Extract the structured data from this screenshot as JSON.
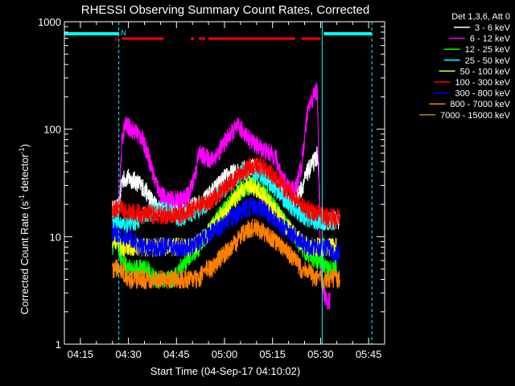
{
  "colors": {
    "background": "#000000",
    "axes": "#ffffff",
    "attenuator_bar": "#00ffff",
    "flare_flag": "#ff0000",
    "state_lines": "#00ffff"
  },
  "chart_data": {
    "type": "line",
    "title": "RHESSI Observing Summary Count Rates, Corrected",
    "xlabel": "Start Time (04-Sep-17 04:10:02)",
    "ylabel_main": "Corrected Count Rate (s",
    "ylabel_sup1": "-1",
    "ylabel_mid": " detector",
    "ylabel_sup2": "-1",
    "ylabel_end": ")",
    "x_unit": "minutes after 04:10:02",
    "x_range": [
      0,
      100
    ],
    "y_scale": "log",
    "y_range": [
      1,
      1000
    ],
    "x_ticks": [
      {
        "x": 5,
        "label": "04:15"
      },
      {
        "x": 20,
        "label": "04:30"
      },
      {
        "x": 35,
        "label": "04:45"
      },
      {
        "x": 50,
        "label": "05:00"
      },
      {
        "x": 65,
        "label": "05:15"
      },
      {
        "x": 80,
        "label": "05:30"
      },
      {
        "x": 95,
        "label": "05:45"
      }
    ],
    "y_ticks": [
      {
        "y": 1,
        "label": "1"
      },
      {
        "y": 10,
        "label": "10"
      },
      {
        "y": 100,
        "label": "100"
      },
      {
        "y": 1000,
        "label": "1000"
      }
    ],
    "legend_title": "Det 1,3,6, Att 0",
    "legend_position": "right",
    "flags": [
      {
        "label": "N",
        "x": 18.5,
        "color": "#00ffff"
      },
      {
        "label": "F",
        "x": 16.5,
        "color": "#ff0000"
      }
    ],
    "flare_segments": [
      [
        18,
        31
      ],
      [
        39.5,
        40.5
      ],
      [
        42,
        44
      ],
      [
        45,
        72
      ],
      [
        74,
        80
      ]
    ],
    "attenuator_segments": [
      [
        0,
        17
      ],
      [
        81,
        96
      ]
    ],
    "vlines_solid": [
      0,
      80.5
    ],
    "vlines_dashed": [
      17,
      96
    ],
    "series": [
      {
        "name": "3 - 6 keV",
        "color": "#ffffff",
        "start": 15,
        "end": 86,
        "points": [
          [
            15,
            18
          ],
          [
            16,
            18
          ],
          [
            17,
            19
          ],
          [
            18,
            34
          ],
          [
            20,
            35
          ],
          [
            22,
            33
          ],
          [
            24,
            30
          ],
          [
            26,
            25
          ],
          [
            28,
            20
          ],
          [
            30,
            18
          ],
          [
            32,
            18
          ],
          [
            35,
            18
          ],
          [
            38,
            18
          ],
          [
            40,
            19
          ],
          [
            42,
            20
          ],
          [
            44,
            22
          ],
          [
            46,
            26
          ],
          [
            48,
            30
          ],
          [
            50,
            35
          ],
          [
            52,
            38
          ],
          [
            54,
            40
          ],
          [
            56,
            42
          ],
          [
            58,
            45
          ],
          [
            60,
            44
          ],
          [
            62,
            40
          ],
          [
            64,
            35
          ],
          [
            66,
            30
          ],
          [
            68,
            25
          ],
          [
            70,
            22
          ],
          [
            72,
            22
          ],
          [
            74,
            28
          ],
          [
            76,
            40
          ],
          [
            78,
            50
          ],
          [
            79,
            58
          ],
          [
            80,
            14
          ],
          [
            82,
            14
          ],
          [
            84,
            14
          ],
          [
            86,
            14
          ]
        ]
      },
      {
        "name": "6 - 12 keV",
        "color": "#ff00ff",
        "start": 17,
        "end": 83,
        "points": [
          [
            17,
            20
          ],
          [
            18,
            80
          ],
          [
            19,
            110
          ],
          [
            20,
            105
          ],
          [
            22,
            95
          ],
          [
            24,
            85
          ],
          [
            26,
            60
          ],
          [
            28,
            35
          ],
          [
            30,
            25
          ],
          [
            32,
            22
          ],
          [
            35,
            22
          ],
          [
            37,
            22
          ],
          [
            39,
            25
          ],
          [
            41,
            40
          ],
          [
            42,
            60
          ],
          [
            44,
            55
          ],
          [
            46,
            52
          ],
          [
            48,
            60
          ],
          [
            50,
            75
          ],
          [
            52,
            90
          ],
          [
            54,
            105
          ],
          [
            56,
            95
          ],
          [
            58,
            80
          ],
          [
            60,
            70
          ],
          [
            62,
            65
          ],
          [
            64,
            60
          ],
          [
            66,
            55
          ],
          [
            68,
            35
          ],
          [
            70,
            28
          ],
          [
            72,
            28
          ],
          [
            74,
            45
          ],
          [
            76,
            150
          ],
          [
            78,
            210
          ],
          [
            79,
            230
          ],
          [
            80,
            5
          ],
          [
            81,
            3
          ],
          [
            82,
            2.5
          ],
          [
            83,
            2.5
          ]
        ]
      },
      {
        "name": "12 - 25 keV",
        "color": "#00ff00",
        "start": 15,
        "end": 85,
        "points": [
          [
            15,
            8
          ],
          [
            16,
            10
          ],
          [
            18,
            6
          ],
          [
            20,
            5
          ],
          [
            22,
            5
          ],
          [
            24,
            5
          ],
          [
            26,
            5
          ],
          [
            28,
            4
          ],
          [
            30,
            4
          ],
          [
            32,
            4
          ],
          [
            34,
            4
          ],
          [
            36,
            5
          ],
          [
            38,
            6
          ],
          [
            40,
            7
          ],
          [
            42,
            8
          ],
          [
            44,
            10
          ],
          [
            46,
            12
          ],
          [
            48,
            15
          ],
          [
            50,
            18
          ],
          [
            52,
            22
          ],
          [
            54,
            25
          ],
          [
            56,
            28
          ],
          [
            58,
            30
          ],
          [
            60,
            28
          ],
          [
            62,
            25
          ],
          [
            64,
            22
          ],
          [
            66,
            18
          ],
          [
            68,
            15
          ],
          [
            70,
            12
          ],
          [
            72,
            10
          ],
          [
            74,
            8
          ],
          [
            76,
            7
          ],
          [
            78,
            6
          ],
          [
            80,
            6
          ],
          [
            82,
            5
          ],
          [
            85,
            5
          ]
        ]
      },
      {
        "name": "25 - 50 keV",
        "color": "#00ffff",
        "start": 15,
        "end": 85,
        "points": [
          [
            15,
            14
          ],
          [
            16,
            14
          ],
          [
            18,
            13
          ],
          [
            20,
            13
          ],
          [
            22,
            14
          ],
          [
            24,
            15
          ],
          [
            26,
            16
          ],
          [
            28,
            17
          ],
          [
            30,
            18
          ],
          [
            32,
            17
          ],
          [
            34,
            16
          ],
          [
            36,
            15
          ],
          [
            38,
            16
          ],
          [
            40,
            17
          ],
          [
            42,
            18
          ],
          [
            44,
            20
          ],
          [
            46,
            22
          ],
          [
            48,
            25
          ],
          [
            50,
            28
          ],
          [
            52,
            32
          ],
          [
            54,
            36
          ],
          [
            56,
            40
          ],
          [
            58,
            42
          ],
          [
            60,
            40
          ],
          [
            62,
            36
          ],
          [
            64,
            32
          ],
          [
            66,
            28
          ],
          [
            68,
            24
          ],
          [
            70,
            20
          ],
          [
            72,
            18
          ],
          [
            74,
            16
          ],
          [
            76,
            15
          ],
          [
            78,
            14
          ],
          [
            80,
            14
          ],
          [
            82,
            14
          ],
          [
            85,
            14
          ]
        ]
      },
      {
        "name": "50 - 100 keV",
        "color": "#ffff00",
        "start": 15,
        "end": 85,
        "points": [
          [
            15,
            9
          ],
          [
            16,
            9
          ],
          [
            18,
            8
          ],
          [
            20,
            8
          ],
          [
            22,
            8
          ],
          [
            24,
            8
          ],
          [
            26,
            8
          ],
          [
            28,
            8
          ],
          [
            30,
            8
          ],
          [
            32,
            8
          ],
          [
            34,
            8
          ],
          [
            36,
            8
          ],
          [
            38,
            8
          ],
          [
            40,
            8
          ],
          [
            42,
            9
          ],
          [
            44,
            10
          ],
          [
            46,
            12
          ],
          [
            48,
            14
          ],
          [
            50,
            17
          ],
          [
            52,
            20
          ],
          [
            54,
            24
          ],
          [
            56,
            28
          ],
          [
            58,
            30
          ],
          [
            60,
            28
          ],
          [
            62,
            24
          ],
          [
            64,
            20
          ],
          [
            66,
            17
          ],
          [
            68,
            14
          ],
          [
            70,
            12
          ],
          [
            72,
            10
          ],
          [
            74,
            9
          ],
          [
            76,
            8
          ],
          [
            78,
            8
          ],
          [
            80,
            8
          ],
          [
            82,
            8
          ],
          [
            85,
            8
          ]
        ]
      },
      {
        "name": "100 - 300 keV",
        "color": "#ff0000",
        "start": 15,
        "end": 86,
        "points": [
          [
            15,
            18
          ],
          [
            16,
            18
          ],
          [
            18,
            18
          ],
          [
            20,
            17
          ],
          [
            22,
            17
          ],
          [
            24,
            16
          ],
          [
            26,
            16
          ],
          [
            28,
            16
          ],
          [
            30,
            16
          ],
          [
            32,
            16
          ],
          [
            34,
            16
          ],
          [
            36,
            16
          ],
          [
            38,
            17
          ],
          [
            40,
            18
          ],
          [
            42,
            19
          ],
          [
            44,
            20
          ],
          [
            46,
            22
          ],
          [
            48,
            25
          ],
          [
            50,
            28
          ],
          [
            52,
            32
          ],
          [
            54,
            36
          ],
          [
            56,
            40
          ],
          [
            58,
            45
          ],
          [
            60,
            46
          ],
          [
            62,
            44
          ],
          [
            64,
            40
          ],
          [
            66,
            35
          ],
          [
            68,
            30
          ],
          [
            70,
            26
          ],
          [
            72,
            23
          ],
          [
            74,
            20
          ],
          [
            76,
            18
          ],
          [
            78,
            17
          ],
          [
            80,
            16
          ],
          [
            82,
            15
          ],
          [
            84,
            15
          ],
          [
            86,
            15
          ]
        ]
      },
      {
        "name": "300 - 800 keV",
        "color": "#0000ff",
        "start": 15,
        "end": 86,
        "points": [
          [
            15,
            11
          ],
          [
            16,
            11
          ],
          [
            18,
            10
          ],
          [
            20,
            10
          ],
          [
            22,
            9
          ],
          [
            24,
            8
          ],
          [
            26,
            8
          ],
          [
            28,
            8
          ],
          [
            30,
            8
          ],
          [
            32,
            8
          ],
          [
            34,
            8
          ],
          [
            36,
            8
          ],
          [
            38,
            8
          ],
          [
            40,
            8
          ],
          [
            42,
            9
          ],
          [
            44,
            10
          ],
          [
            46,
            11
          ],
          [
            48,
            12
          ],
          [
            50,
            13
          ],
          [
            52,
            15
          ],
          [
            54,
            16
          ],
          [
            56,
            18
          ],
          [
            58,
            19
          ],
          [
            60,
            19
          ],
          [
            62,
            18
          ],
          [
            64,
            16
          ],
          [
            66,
            14
          ],
          [
            68,
            12
          ],
          [
            70,
            11
          ],
          [
            72,
            10
          ],
          [
            74,
            9
          ],
          [
            76,
            8
          ],
          [
            78,
            8
          ],
          [
            80,
            8
          ],
          [
            82,
            8
          ],
          [
            84,
            7
          ],
          [
            86,
            7
          ]
        ]
      },
      {
        "name": "800 - 7000 keV",
        "color": "#ff8000",
        "start": 15,
        "end": 86,
        "points": [
          [
            15,
            5
          ],
          [
            16,
            5
          ],
          [
            18,
            5
          ],
          [
            20,
            4
          ],
          [
            22,
            4
          ],
          [
            24,
            4
          ],
          [
            26,
            4
          ],
          [
            28,
            4
          ],
          [
            30,
            4
          ],
          [
            32,
            4
          ],
          [
            34,
            4
          ],
          [
            36,
            4
          ],
          [
            38,
            4
          ],
          [
            40,
            4
          ],
          [
            42,
            4
          ],
          [
            44,
            5
          ],
          [
            46,
            5
          ],
          [
            48,
            6
          ],
          [
            50,
            7
          ],
          [
            52,
            8
          ],
          [
            54,
            9
          ],
          [
            56,
            11
          ],
          [
            58,
            12
          ],
          [
            60,
            12
          ],
          [
            62,
            11
          ],
          [
            64,
            10
          ],
          [
            66,
            9
          ],
          [
            68,
            8
          ],
          [
            70,
            7
          ],
          [
            72,
            6
          ],
          [
            74,
            5
          ],
          [
            76,
            5
          ],
          [
            78,
            4
          ],
          [
            80,
            4
          ],
          [
            82,
            4
          ],
          [
            84,
            4
          ],
          [
            86,
            4
          ]
        ]
      },
      {
        "name": "7000 - 15000 keV",
        "color": "#aa8800",
        "start": 15,
        "end": 86,
        "points": []
      }
    ]
  }
}
